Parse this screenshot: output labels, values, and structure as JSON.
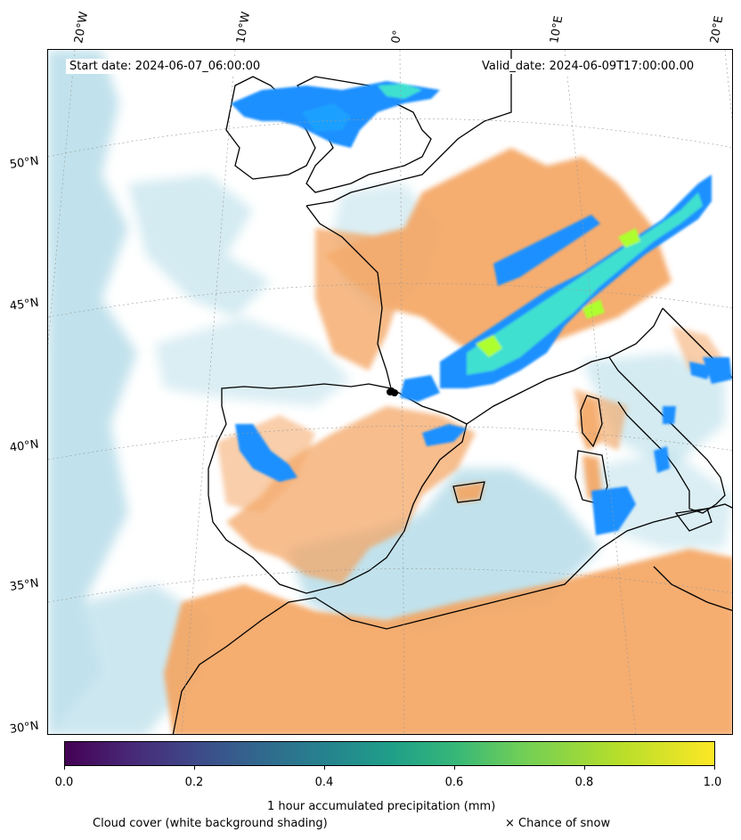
{
  "map": {
    "longitude_labels": [
      "20°W",
      "10°W",
      "0°",
      "10°E",
      "20°E"
    ],
    "latitude_labels": [
      "50°N",
      "45°N",
      "40°N",
      "35°N",
      "30°N"
    ],
    "start_date": "Start date: 2024-06-07_06:00:00",
    "valid_date": "Valid_date: 2024-06-09T17:00:00.00",
    "colors": {
      "land_cloud_orange": "#f4a460",
      "sea_cloud_blue": "#add8e6",
      "precip_light": "#1e90ff",
      "precip_mid": "#40e0d0",
      "precip_high": "#adff2f",
      "coastline": "#000000"
    }
  },
  "colorbar": {
    "label": "1 hour accumulated precipitation (mm)",
    "ticks": [
      "0.0",
      "0.2",
      "0.4",
      "0.6",
      "0.8",
      "1.0"
    ],
    "colormap": "viridis"
  },
  "footer": {
    "cloud_cover_note": "Cloud cover (white background shading)",
    "snow_note": "× Chance of snow"
  }
}
